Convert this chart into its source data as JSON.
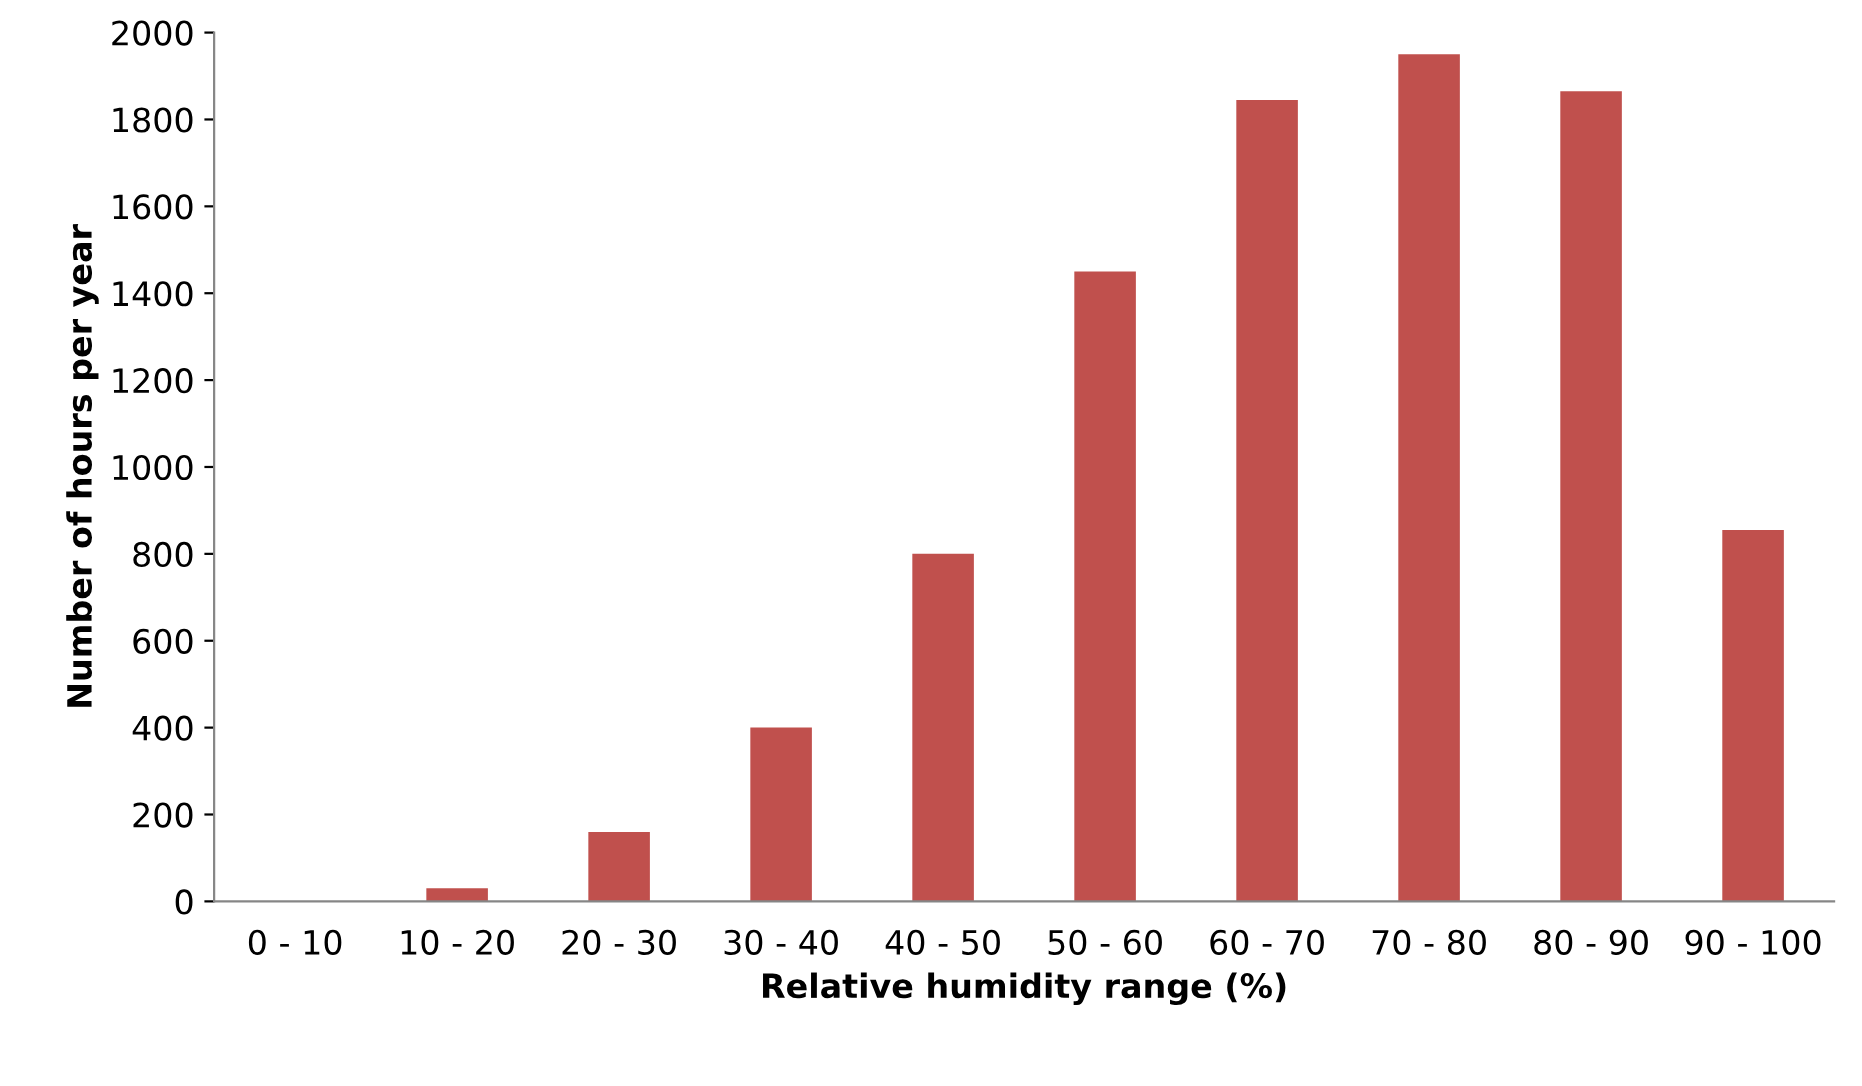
{
  "chart_data": {
    "type": "bar",
    "xlabel": "Relative humidity range (%)",
    "ylabel": "Number of hours per year",
    "categories": [
      "0 - 10",
      "10 - 20",
      "20 - 30",
      "30 - 40",
      "40 - 50",
      "50 - 60",
      "60 - 70",
      "70 - 80",
      "80 - 90",
      "90 - 100"
    ],
    "values": [
      0,
      30,
      160,
      400,
      800,
      1450,
      1845,
      1950,
      1865,
      855
    ],
    "color": "#c0504d",
    "ylim": [
      0,
      2000
    ],
    "yticks": [
      0,
      200,
      400,
      600,
      800,
      1000,
      1200,
      1400,
      1600,
      1800,
      2000
    ],
    "grid": false,
    "legend": false
  }
}
